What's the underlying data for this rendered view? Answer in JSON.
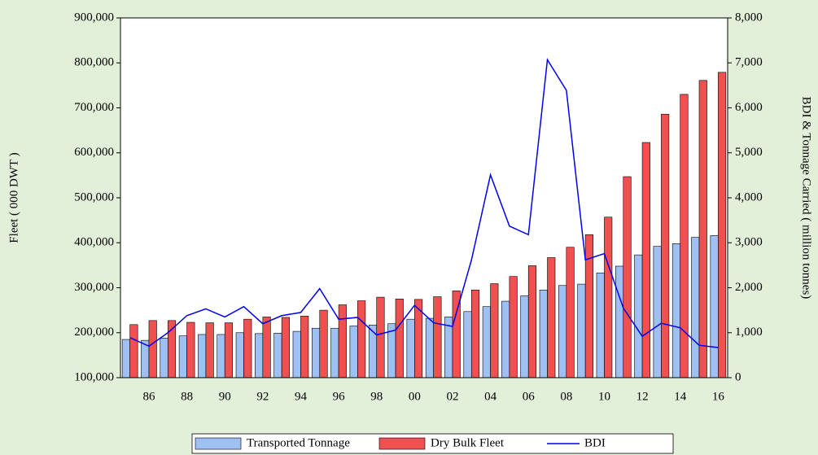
{
  "chart_data": {
    "type": "bar",
    "y_label": "Fleet ( 000 DWT )",
    "y2_label": "BDI & Tonnage Carried ( million tonnes)",
    "categories": [
      null,
      "86",
      null,
      "88",
      null,
      "90",
      null,
      "92",
      null,
      "94",
      null,
      "96",
      null,
      "98",
      null,
      "00",
      null,
      "02",
      null,
      "04",
      null,
      "06",
      null,
      "08",
      null,
      "10",
      null,
      "12",
      null,
      "14",
      null,
      "16"
    ],
    "series": [
      {
        "name": "Transported Tonnage",
        "color": "#9fc0f2",
        "axis": "y2",
        "values": [
          850,
          830,
          880,
          930,
          960,
          960,
          1000,
          980,
          990,
          1030,
          1100,
          1100,
          1150,
          1170,
          1200,
          1300,
          1320,
          1350,
          1470,
          1580,
          1700,
          1820,
          1950,
          2050,
          2080,
          2330,
          2480,
          2730,
          2920,
          2980,
          3120,
          3160
        ]
      },
      {
        "name": "Dry Bulk Fleet",
        "color": "#f05050",
        "values": [
          218000,
          227000,
          227000,
          223000,
          222000,
          222000,
          230000,
          235000,
          234000,
          237000,
          250000,
          262000,
          271000,
          279000,
          275000,
          274000,
          280000,
          293000,
          295000,
          309000,
          325000,
          349000,
          367000,
          390000,
          418000,
          457000,
          547000,
          623000,
          686000,
          730000,
          761000,
          779000
        ]
      },
      {
        "name": "BDI",
        "color": "#0000ee",
        "axis": "y2",
        "type": "line",
        "values": [
          890,
          700,
          1000,
          1380,
          1530,
          1350,
          1580,
          1200,
          1380,
          1450,
          1980,
          1300,
          1340,
          950,
          1060,
          1610,
          1220,
          1140,
          2620,
          4510,
          3370,
          3180,
          7070,
          6390,
          2620,
          2760,
          1550,
          920,
          1210,
          1110,
          720,
          670
        ]
      }
    ],
    "ylim": [
      100000,
      900000
    ],
    "yticks": [
      {
        "value": 100000,
        "label": "100,000"
      },
      {
        "value": 200000,
        "label": "200,000"
      },
      {
        "value": 300000,
        "label": "300,000"
      },
      {
        "value": 400000,
        "label": "400,000"
      },
      {
        "value": 500000,
        "label": "500,000"
      },
      {
        "value": 600000,
        "label": "600,000"
      },
      {
        "value": 700000,
        "label": "700,000"
      },
      {
        "value": 800000,
        "label": "800,000"
      },
      {
        "value": 900000,
        "label": "900,000"
      }
    ],
    "y2lim": [
      0,
      8000
    ],
    "y2ticks": [
      0,
      {
        "value": 1000,
        "label": "1,000"
      },
      {
        "value": 2000,
        "label": "2,000"
      },
      {
        "value": 3000,
        "label": "3,000"
      },
      {
        "value": 4000,
        "label": "4,000"
      },
      {
        "value": 5000,
        "label": "5,000"
      },
      {
        "value": 6000,
        "label": "6,000"
      },
      {
        "value": 7000,
        "label": "7,000"
      },
      {
        "value": 8000,
        "label": "8,000"
      }
    ],
    "legend": "bottom"
  }
}
